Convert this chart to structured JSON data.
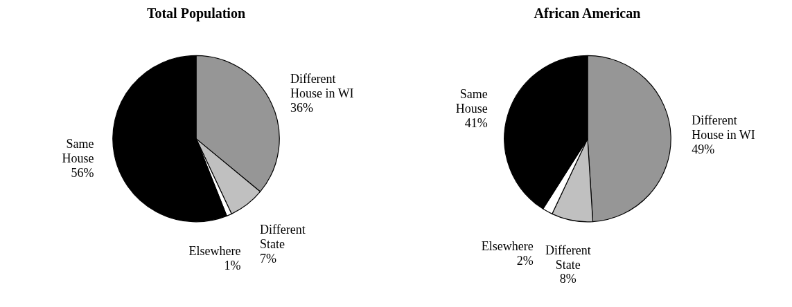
{
  "chart_data": [
    {
      "type": "pie",
      "title": "Total Population",
      "categories": [
        "Different House in WI",
        "Different State",
        "Elsewhere",
        "Same House"
      ],
      "values": [
        36,
        7,
        1,
        56
      ],
      "value_labels": [
        "36%",
        "7%",
        "1%",
        "56%"
      ],
      "colors": [
        "#969696",
        "#c0c0c0",
        "#ffffff",
        "#000000"
      ],
      "legend": false
    },
    {
      "type": "pie",
      "title": "African American",
      "categories": [
        "Different House in WI",
        "Different State",
        "Elsewhere",
        "Same House"
      ],
      "values": [
        49,
        8,
        2,
        41
      ],
      "value_labels": [
        "49%",
        "8%",
        "2%",
        "41%"
      ],
      "colors": [
        "#969696",
        "#c0c0c0",
        "#ffffff",
        "#000000"
      ],
      "legend": false
    }
  ]
}
